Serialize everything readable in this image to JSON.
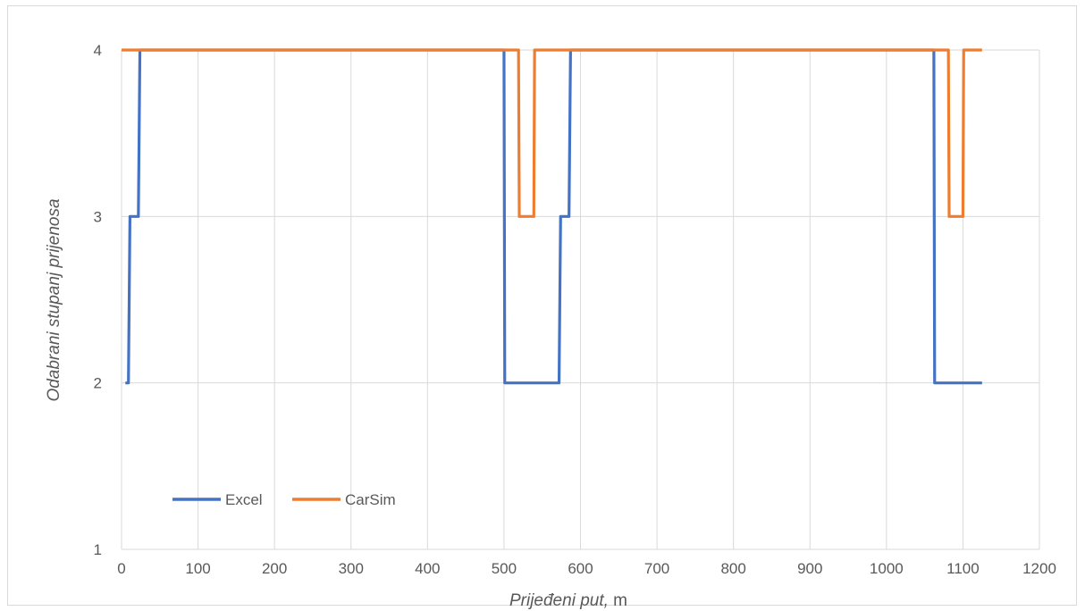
{
  "chart_data": {
    "type": "line",
    "title": "",
    "xlabel_italic": "Prijeđeni put,",
    "xlabel_unit": " m",
    "ylabel": "Odabrani stupanj prijenosa",
    "xlim": [
      0,
      1200
    ],
    "ylim": [
      1,
      4
    ],
    "x_ticks": [
      "0",
      "100",
      "200",
      "300",
      "400",
      "500",
      "600",
      "700",
      "800",
      "900",
      "1000",
      "1100",
      "1200"
    ],
    "y_ticks": [
      "1",
      "2",
      "3",
      "4"
    ],
    "grid": true,
    "legend_position": "lower-left",
    "series": [
      {
        "name": "Excel",
        "color": "#4472C4",
        "points": [
          [
            5,
            2
          ],
          [
            9,
            2
          ],
          [
            11,
            3
          ],
          [
            22,
            3
          ],
          [
            24,
            4
          ],
          [
            500,
            4
          ],
          [
            501,
            2
          ],
          [
            572,
            2
          ],
          [
            574,
            3
          ],
          [
            585,
            3
          ],
          [
            587,
            4
          ],
          [
            1062,
            4
          ],
          [
            1063,
            2
          ],
          [
            1125,
            2
          ]
        ]
      },
      {
        "name": "CarSim",
        "color": "#ED7D31",
        "points": [
          [
            0,
            4
          ],
          [
            519,
            4
          ],
          [
            520,
            3
          ],
          [
            539,
            3
          ],
          [
            540,
            4
          ],
          [
            1081,
            4
          ],
          [
            1082,
            3
          ],
          [
            1100,
            3
          ],
          [
            1101,
            4
          ],
          [
            1125,
            4
          ]
        ]
      }
    ]
  }
}
